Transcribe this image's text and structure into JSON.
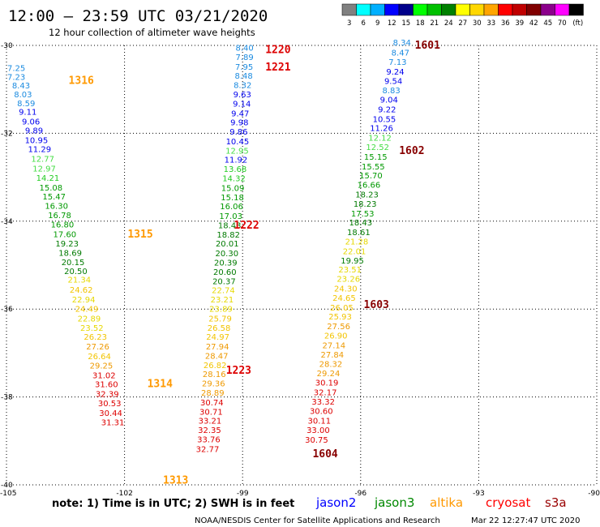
{
  "header": {
    "title": "12:00 — 23:59 UTC 03/21/2020",
    "subtitle": "12 hour collection of altimeter wave heights"
  },
  "colorbar": {
    "colors": [
      "#808080",
      "#00ffff",
      "#00b0ff",
      "#0000ff",
      "#00008b",
      "#00ff00",
      "#00c000",
      "#008000",
      "#ffff00",
      "#ffd700",
      "#ffa500",
      "#ff0000",
      "#c00000",
      "#800000",
      "#8b008b",
      "#ff00ff",
      "#000000"
    ],
    "labels": [
      "3",
      "6",
      "9",
      "12",
      "15",
      "18",
      "21",
      "24",
      "27",
      "30",
      "33",
      "36",
      "39",
      "42",
      "45",
      "70",
      "(ft)"
    ]
  },
  "footer": {
    "note": "note:  1) Time is in UTC;  2) SWH is in feet",
    "satellites": [
      {
        "name": "jason2",
        "color": "#0000ff"
      },
      {
        "name": "jason3",
        "color": "#008800"
      },
      {
        "name": "altika",
        "color": "#ff9900"
      },
      {
        "name": "cryosat",
        "color": "#ff0000"
      },
      {
        "name": "s3a",
        "color": "#990000"
      }
    ],
    "credit": "NOAA/NESDIS Center for Satellite Applications and Research",
    "timestamp": "Mar 22 12:27:47 UTC 2020"
  },
  "chart_data": {
    "type": "scatter",
    "xlim": [
      -105,
      -90
    ],
    "ylim": [
      -40,
      -30
    ],
    "x_ticks": [
      -105,
      -102,
      -99,
      -96,
      -93,
      -90
    ],
    "y_ticks": [
      -30,
      -32,
      -34,
      -36,
      -38,
      -40
    ],
    "grid": true,
    "pass_labels": [
      {
        "text": "1316",
        "lon": -103.1,
        "lat": -30.8,
        "color": "#ff9900"
      },
      {
        "text": "1315",
        "lon": -101.6,
        "lat": -34.3,
        "color": "#ff9900"
      },
      {
        "text": "1314",
        "lon": -101.1,
        "lat": -37.7,
        "color": "#ff9900"
      },
      {
        "text": "1313",
        "lon": -100.7,
        "lat": -39.9,
        "color": "#ff9900"
      },
      {
        "text": "1220",
        "lon": -98.1,
        "lat": -30.1,
        "color": "#dd0000"
      },
      {
        "text": "1221",
        "lon": -98.1,
        "lat": -30.5,
        "color": "#dd0000"
      },
      {
        "text": "1222",
        "lon": -98.9,
        "lat": -34.1,
        "color": "#dd0000"
      },
      {
        "text": "1223",
        "lon": -99.1,
        "lat": -37.4,
        "color": "#dd0000"
      },
      {
        "text": "1601",
        "lon": -94.3,
        "lat": -30.0,
        "color": "#880000"
      },
      {
        "text": "1602",
        "lon": -94.7,
        "lat": -32.4,
        "color": "#880000"
      },
      {
        "text": "1603",
        "lon": -95.6,
        "lat": -35.9,
        "color": "#880000"
      },
      {
        "text": "1604",
        "lon": -96.9,
        "lat": -39.3,
        "color": "#880000"
      }
    ],
    "tracks": [
      {
        "name": "1316/1315/1314/1313",
        "points": [
          {
            "lon": -104.75,
            "lat": -30.58,
            "v": "7.25"
          },
          {
            "lon": -104.75,
            "lat": -30.78,
            "v": "7.23"
          },
          {
            "lon": -104.63,
            "lat": -30.98,
            "v": "8.43"
          },
          {
            "lon": -104.58,
            "lat": -31.18,
            "v": "8.03"
          },
          {
            "lon": -104.5,
            "lat": -31.38,
            "v": "8.59"
          },
          {
            "lon": -104.46,
            "lat": -31.58,
            "v": "9.11"
          },
          {
            "lon": -104.38,
            "lat": -31.8,
            "v": "9.06"
          },
          {
            "lon": -104.3,
            "lat": -32.0,
            "v": "9.89"
          },
          {
            "lon": -104.24,
            "lat": -32.22,
            "v": "10.95"
          },
          {
            "lon": -104.16,
            "lat": -32.43,
            "v": "11.29"
          },
          {
            "lon": -104.08,
            "lat": -32.65,
            "v": "12.77"
          },
          {
            "lon": -104.04,
            "lat": -32.87,
            "v": "12.97"
          },
          {
            "lon": -103.95,
            "lat": -33.08,
            "v": "14.21"
          },
          {
            "lon": -103.87,
            "lat": -33.3,
            "v": "15.08"
          },
          {
            "lon": -103.79,
            "lat": -33.51,
            "v": "15.47"
          },
          {
            "lon": -103.73,
            "lat": -33.72,
            "v": "16.30"
          },
          {
            "lon": -103.65,
            "lat": -33.93,
            "v": "16.78"
          },
          {
            "lon": -103.58,
            "lat": -34.14,
            "v": "16.80"
          },
          {
            "lon": -103.52,
            "lat": -34.36,
            "v": "17.60"
          },
          {
            "lon": -103.46,
            "lat": -34.58,
            "v": "19.23"
          },
          {
            "lon": -103.38,
            "lat": -34.79,
            "v": "18.69"
          },
          {
            "lon": -103.31,
            "lat": -35.0,
            "v": "20.15"
          },
          {
            "lon": -103.24,
            "lat": -35.2,
            "v": "20.50"
          },
          {
            "lon": -103.15,
            "lat": -35.4,
            "v": "21.34"
          },
          {
            "lon": -103.1,
            "lat": -35.63,
            "v": "24.62"
          },
          {
            "lon": -103.04,
            "lat": -35.85,
            "v": "22.94"
          },
          {
            "lon": -102.96,
            "lat": -36.06,
            "v": "24.49"
          },
          {
            "lon": -102.9,
            "lat": -36.28,
            "v": "22.89"
          },
          {
            "lon": -102.83,
            "lat": -36.49,
            "v": "23.52"
          },
          {
            "lon": -102.74,
            "lat": -36.7,
            "v": "26.23"
          },
          {
            "lon": -102.68,
            "lat": -36.92,
            "v": "27.26"
          },
          {
            "lon": -102.64,
            "lat": -37.14,
            "v": "26.64"
          },
          {
            "lon": -102.59,
            "lat": -37.35,
            "v": "29.25"
          },
          {
            "lon": -102.52,
            "lat": -37.57,
            "v": "31.02"
          },
          {
            "lon": -102.46,
            "lat": -37.78,
            "v": "31.60"
          },
          {
            "lon": -102.44,
            "lat": -38.0,
            "v": "32.39"
          },
          {
            "lon": -102.38,
            "lat": -38.21,
            "v": "30.53"
          },
          {
            "lon": -102.35,
            "lat": -38.43,
            "v": "30.44"
          },
          {
            "lon": -102.3,
            "lat": -38.64,
            "v": "31.31"
          }
        ]
      },
      {
        "name": "1220/1221/1222/1223",
        "points": [
          {
            "lon": -98.95,
            "lat": -30.12,
            "v": "8.40"
          },
          {
            "lon": -98.95,
            "lat": -30.33,
            "v": "7.89"
          },
          {
            "lon": -98.96,
            "lat": -30.55,
            "v": "7.95"
          },
          {
            "lon": -98.97,
            "lat": -30.76,
            "v": "8.48"
          },
          {
            "lon": -99.0,
            "lat": -30.97,
            "v": "8.32"
          },
          {
            "lon": -99.01,
            "lat": -31.18,
            "v": "9.63"
          },
          {
            "lon": -99.02,
            "lat": -31.39,
            "v": "9.14"
          },
          {
            "lon": -99.06,
            "lat": -31.61,
            "v": "9.47"
          },
          {
            "lon": -99.08,
            "lat": -31.82,
            "v": "9.98"
          },
          {
            "lon": -99.1,
            "lat": -32.03,
            "v": "9.86"
          },
          {
            "lon": -99.13,
            "lat": -32.25,
            "v": "10.45"
          },
          {
            "lon": -99.14,
            "lat": -32.46,
            "v": "12.95"
          },
          {
            "lon": -99.17,
            "lat": -32.67,
            "v": "11.92"
          },
          {
            "lon": -99.19,
            "lat": -32.88,
            "v": "13.68"
          },
          {
            "lon": -99.22,
            "lat": -33.09,
            "v": "14.32"
          },
          {
            "lon": -99.25,
            "lat": -33.31,
            "v": "15.09"
          },
          {
            "lon": -99.26,
            "lat": -33.52,
            "v": "15.18"
          },
          {
            "lon": -99.28,
            "lat": -33.73,
            "v": "16.06"
          },
          {
            "lon": -99.3,
            "lat": -33.95,
            "v": "17.03"
          },
          {
            "lon": -99.33,
            "lat": -34.16,
            "v": "18.43"
          },
          {
            "lon": -99.36,
            "lat": -34.37,
            "v": "18.82"
          },
          {
            "lon": -99.39,
            "lat": -34.58,
            "v": "20.01"
          },
          {
            "lon": -99.4,
            "lat": -34.8,
            "v": "20.30"
          },
          {
            "lon": -99.43,
            "lat": -35.01,
            "v": "20.39"
          },
          {
            "lon": -99.45,
            "lat": -35.22,
            "v": "20.60"
          },
          {
            "lon": -99.47,
            "lat": -35.43,
            "v": "20.37"
          },
          {
            "lon": -99.49,
            "lat": -35.64,
            "v": "22.74"
          },
          {
            "lon": -99.52,
            "lat": -35.85,
            "v": "23.21"
          },
          {
            "lon": -99.55,
            "lat": -36.06,
            "v": "23.89"
          },
          {
            "lon": -99.57,
            "lat": -36.28,
            "v": "25.79"
          },
          {
            "lon": -99.6,
            "lat": -36.49,
            "v": "26.58"
          },
          {
            "lon": -99.63,
            "lat": -36.7,
            "v": "24.97"
          },
          {
            "lon": -99.64,
            "lat": -36.92,
            "v": "27.94"
          },
          {
            "lon": -99.66,
            "lat": -37.13,
            "v": "28.47"
          },
          {
            "lon": -99.7,
            "lat": -37.34,
            "v": "26.82"
          },
          {
            "lon": -99.72,
            "lat": -37.55,
            "v": "28.16"
          },
          {
            "lon": -99.74,
            "lat": -37.76,
            "v": "29.36"
          },
          {
            "lon": -99.76,
            "lat": -37.97,
            "v": "28.89"
          },
          {
            "lon": -99.78,
            "lat": -38.19,
            "v": "30.74"
          },
          {
            "lon": -99.8,
            "lat": -38.4,
            "v": "30.71"
          },
          {
            "lon": -99.83,
            "lat": -38.61,
            "v": "33.21"
          },
          {
            "lon": -99.84,
            "lat": -38.82,
            "v": "32.35"
          },
          {
            "lon": -99.86,
            "lat": -39.03,
            "v": "33.76"
          },
          {
            "lon": -99.89,
            "lat": -39.25,
            "v": "32.77"
          }
        ]
      },
      {
        "name": "1601/1602/1603/1604",
        "points": [
          {
            "lon": -94.95,
            "lat": -30.0,
            "v": "8.34"
          },
          {
            "lon": -94.99,
            "lat": -30.23,
            "v": "8.47"
          },
          {
            "lon": -95.06,
            "lat": -30.44,
            "v": "7.13"
          },
          {
            "lon": -95.12,
            "lat": -30.66,
            "v": "9.24"
          },
          {
            "lon": -95.17,
            "lat": -30.88,
            "v": "9.54"
          },
          {
            "lon": -95.22,
            "lat": -31.09,
            "v": "8.83"
          },
          {
            "lon": -95.28,
            "lat": -31.3,
            "v": "9.04"
          },
          {
            "lon": -95.33,
            "lat": -31.52,
            "v": "9.22"
          },
          {
            "lon": -95.4,
            "lat": -31.74,
            "v": "10.55"
          },
          {
            "lon": -95.47,
            "lat": -31.95,
            "v": "11.26"
          },
          {
            "lon": -95.51,
            "lat": -32.17,
            "v": "12.12"
          },
          {
            "lon": -95.57,
            "lat": -32.38,
            "v": "12.52"
          },
          {
            "lon": -95.62,
            "lat": -32.6,
            "v": "15.15"
          },
          {
            "lon": -95.68,
            "lat": -32.82,
            "v": "15.55"
          },
          {
            "lon": -95.74,
            "lat": -33.03,
            "v": "15.70"
          },
          {
            "lon": -95.79,
            "lat": -33.24,
            "v": "16.66"
          },
          {
            "lon": -95.84,
            "lat": -33.46,
            "v": "18.23"
          },
          {
            "lon": -95.89,
            "lat": -33.67,
            "v": "18.23"
          },
          {
            "lon": -95.95,
            "lat": -33.89,
            "v": "17.53"
          },
          {
            "lon": -96.0,
            "lat": -34.1,
            "v": "18.43"
          },
          {
            "lon": -96.05,
            "lat": -34.32,
            "v": "18.61"
          },
          {
            "lon": -96.1,
            "lat": -34.53,
            "v": "21.28"
          },
          {
            "lon": -96.16,
            "lat": -34.75,
            "v": "22.01"
          },
          {
            "lon": -96.21,
            "lat": -34.96,
            "v": "19.95"
          },
          {
            "lon": -96.27,
            "lat": -35.17,
            "v": "23.51"
          },
          {
            "lon": -96.31,
            "lat": -35.38,
            "v": "23.26"
          },
          {
            "lon": -96.38,
            "lat": -35.6,
            "v": "24.30"
          },
          {
            "lon": -96.42,
            "lat": -35.81,
            "v": "24.65"
          },
          {
            "lon": -96.48,
            "lat": -36.03,
            "v": "26.05"
          },
          {
            "lon": -96.52,
            "lat": -36.24,
            "v": "25.93"
          },
          {
            "lon": -96.56,
            "lat": -36.46,
            "v": "27.56"
          },
          {
            "lon": -96.63,
            "lat": -36.67,
            "v": "26.90"
          },
          {
            "lon": -96.68,
            "lat": -36.89,
            "v": "27.14"
          },
          {
            "lon": -96.72,
            "lat": -37.1,
            "v": "27.84"
          },
          {
            "lon": -96.76,
            "lat": -37.32,
            "v": "28.32"
          },
          {
            "lon": -96.82,
            "lat": -37.53,
            "v": "29.24"
          },
          {
            "lon": -96.86,
            "lat": -37.74,
            "v": "30.19"
          },
          {
            "lon": -96.9,
            "lat": -37.96,
            "v": "32.17"
          },
          {
            "lon": -96.95,
            "lat": -38.17,
            "v": "33.32"
          },
          {
            "lon": -97.0,
            "lat": -38.39,
            "v": "30.60"
          },
          {
            "lon": -97.05,
            "lat": -38.61,
            "v": "30.11"
          },
          {
            "lon": -97.08,
            "lat": -38.82,
            "v": "33.00"
          },
          {
            "lon": -97.12,
            "lat": -39.04,
            "v": "30.75"
          }
        ]
      }
    ]
  }
}
